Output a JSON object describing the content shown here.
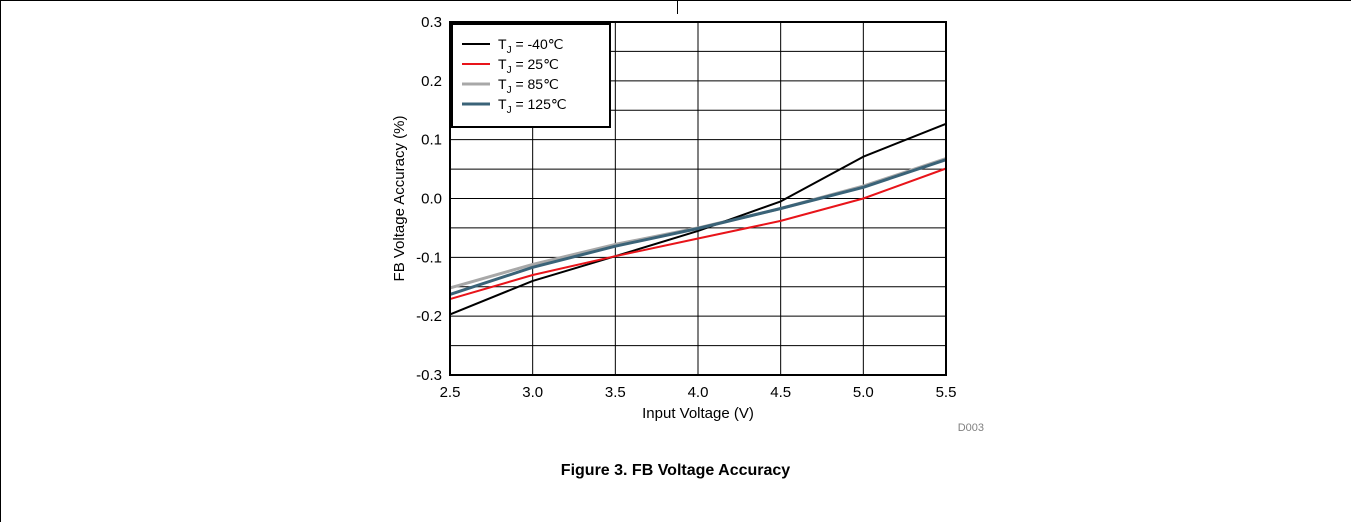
{
  "figure_caption": "Figure 3. FB Voltage Accuracy",
  "figure_code": "D003",
  "chart_data": {
    "type": "line",
    "xlabel": "Input Voltage (V)",
    "ylabel": "FB Voltage Accuracy (%)",
    "xlim": [
      2.5,
      5.5
    ],
    "ylim": [
      -0.3,
      0.3
    ],
    "x_ticks": [
      2.5,
      3.0,
      3.5,
      4.0,
      4.5,
      5.0,
      5.5
    ],
    "x_tick_labels": [
      "2.5",
      "3.0",
      "3.5",
      "4.0",
      "4.5",
      "5.0",
      "5.5"
    ],
    "y_ticks": [
      -0.3,
      -0.2,
      -0.1,
      0.0,
      0.1,
      0.2,
      0.3
    ],
    "y_tick_labels": [
      "-0.3",
      "-0.2",
      "-0.1",
      "0.0",
      "0.1",
      "0.2",
      "0.3"
    ],
    "grid": true,
    "legend_position": "top-left",
    "x": [
      2.5,
      3.0,
      3.5,
      4.0,
      4.5,
      5.0,
      5.5
    ],
    "series": [
      {
        "name": "T_J = -40℃",
        "label_main": "T",
        "label_sub": "J",
        "label_rest": " = -40℃",
        "color": "#000000",
        "values": [
          -0.197,
          -0.14,
          -0.098,
          -0.055,
          -0.005,
          0.071,
          0.127
        ]
      },
      {
        "name": "T_J =  25℃",
        "label_main": "T",
        "label_sub": "J",
        "label_rest": " =  25℃",
        "color": "#e8141a",
        "values": [
          -0.171,
          -0.13,
          -0.098,
          -0.068,
          -0.038,
          0.0,
          0.051
        ]
      },
      {
        "name": "T_J =  85℃",
        "label_main": "T",
        "label_sub": "J",
        "label_rest": " =  85℃",
        "color": "#a8a8a8",
        "values": [
          -0.152,
          -0.112,
          -0.078,
          -0.05,
          -0.017,
          0.021,
          0.068
        ]
      },
      {
        "name": "T_J =  125℃",
        "label_main": "T",
        "label_sub": "J",
        "label_rest": " =  125℃",
        "color": "#3a6378",
        "values": [
          -0.163,
          -0.117,
          -0.081,
          -0.051,
          -0.017,
          0.019,
          0.066
        ]
      }
    ]
  }
}
